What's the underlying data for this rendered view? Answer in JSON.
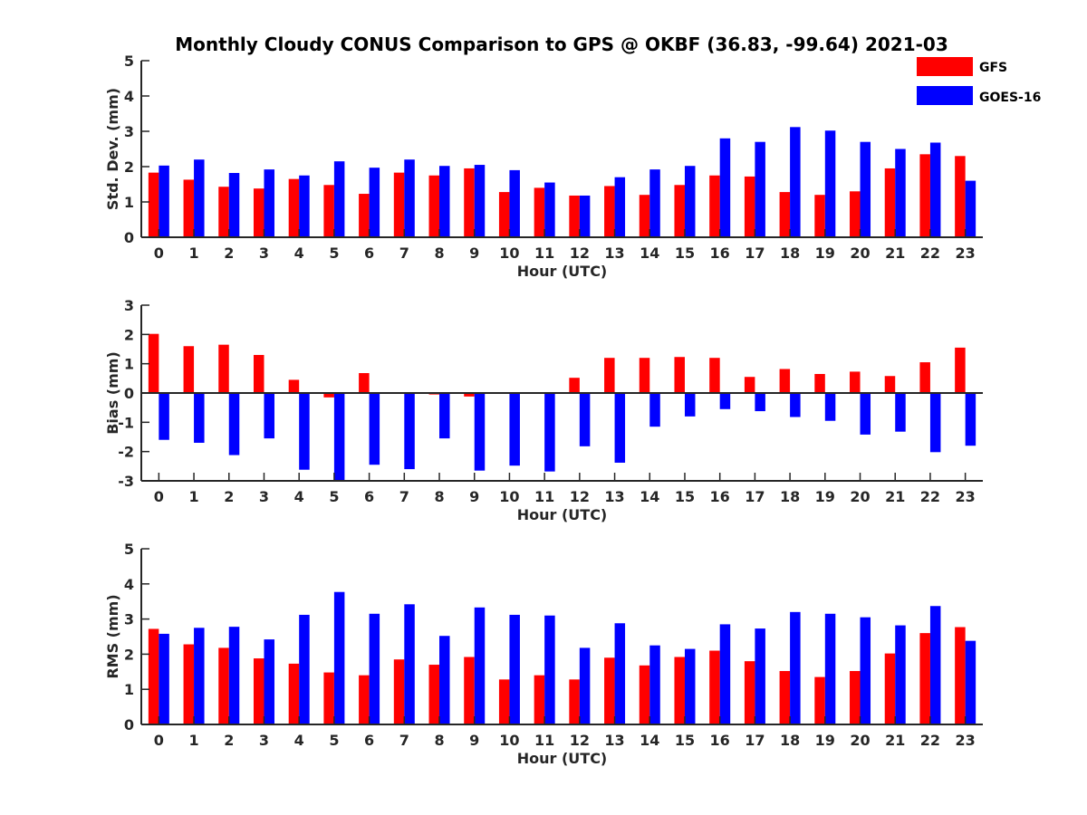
{
  "chart_data": {
    "title": "Monthly Cloudy CONUS Comparison to GPS @ OKBF (36.83, -99.64) 2021-03",
    "legend": {
      "placement": "top-right",
      "entries": [
        {
          "name": "GFS",
          "color": "#ff0000"
        },
        {
          "name": "GOES-16",
          "color": "#0000ff"
        }
      ]
    },
    "panels": [
      {
        "type": "bar",
        "ylabel": "Std. Dev. (mm)",
        "xlabel": "Hour (UTC)",
        "ylim": [
          0,
          5
        ],
        "yticks": [
          0,
          1,
          2,
          3,
          4,
          5
        ],
        "categories": [
          "0",
          "1",
          "2",
          "3",
          "4",
          "5",
          "6",
          "7",
          "8",
          "9",
          "10",
          "11",
          "12",
          "13",
          "14",
          "15",
          "16",
          "17",
          "18",
          "19",
          "20",
          "21",
          "22",
          "23"
        ],
        "series": [
          {
            "name": "GFS",
            "color": "#ff0000",
            "values": [
              1.83,
              1.63,
              1.43,
              1.38,
              1.65,
              1.48,
              1.23,
              1.83,
              1.75,
              1.95,
              1.28,
              1.4,
              1.18,
              1.45,
              1.2,
              1.48,
              1.75,
              1.72,
              1.28,
              1.2,
              1.3,
              1.95,
              2.35,
              2.3
            ]
          },
          {
            "name": "GOES-16",
            "color": "#0000ff",
            "values": [
              2.03,
              2.2,
              1.82,
              1.92,
              1.75,
              2.15,
              1.97,
              2.2,
              2.02,
              2.05,
              1.9,
              1.55,
              1.18,
              1.7,
              1.92,
              2.02,
              2.8,
              2.7,
              3.12,
              3.02,
              2.7,
              2.5,
              2.68,
              1.6
            ]
          }
        ]
      },
      {
        "type": "bar",
        "ylabel": "Bias (mm)",
        "xlabel": "Hour (UTC)",
        "ylim": [
          -3,
          3
        ],
        "yticks": [
          -3,
          -2,
          -1,
          0,
          1,
          2,
          3
        ],
        "categories": [
          "0",
          "1",
          "2",
          "3",
          "4",
          "5",
          "6",
          "7",
          "8",
          "9",
          "10",
          "11",
          "12",
          "13",
          "14",
          "15",
          "16",
          "17",
          "18",
          "19",
          "20",
          "21",
          "22",
          "23"
        ],
        "series": [
          {
            "name": "GFS",
            "color": "#ff0000",
            "values": [
              2.02,
              1.6,
              1.65,
              1.3,
              0.45,
              -0.15,
              0.68,
              0,
              -0.05,
              -0.12,
              0,
              -0.03,
              0.52,
              1.2,
              1.2,
              1.23,
              1.2,
              0.55,
              0.82,
              0.65,
              0.73,
              0.58,
              1.05,
              1.55
            ]
          },
          {
            "name": "GOES-16",
            "color": "#0000ff",
            "values": [
              -1.6,
              -1.7,
              -2.12,
              -1.55,
              -2.62,
              -3.0,
              -2.45,
              -2.6,
              -1.55,
              -2.65,
              -2.48,
              -2.68,
              -1.82,
              -2.38,
              -1.15,
              -0.8,
              -0.55,
              -0.62,
              -0.82,
              -0.95,
              -1.42,
              -1.32,
              -2.02,
              -1.8
            ]
          }
        ]
      },
      {
        "type": "bar",
        "ylabel": "RMS (mm)",
        "xlabel": "Hour (UTC)",
        "ylim": [
          0,
          5
        ],
        "yticks": [
          0,
          1,
          2,
          3,
          4,
          5
        ],
        "categories": [
          "0",
          "1",
          "2",
          "3",
          "4",
          "5",
          "6",
          "7",
          "8",
          "9",
          "10",
          "11",
          "12",
          "13",
          "14",
          "15",
          "16",
          "17",
          "18",
          "19",
          "20",
          "21",
          "22",
          "23"
        ],
        "series": [
          {
            "name": "GFS",
            "color": "#ff0000",
            "values": [
              2.72,
              2.28,
              2.18,
              1.88,
              1.73,
              1.48,
              1.4,
              1.85,
              1.7,
              1.92,
              1.28,
              1.4,
              1.28,
              1.9,
              1.68,
              1.92,
              2.1,
              1.8,
              1.52,
              1.35,
              1.52,
              2.02,
              2.6,
              2.77
            ]
          },
          {
            "name": "GOES-16",
            "color": "#0000ff",
            "values": [
              2.58,
              2.75,
              2.78,
              2.42,
              3.12,
              3.77,
              3.15,
              3.42,
              2.52,
              3.33,
              3.12,
              3.1,
              2.18,
              2.88,
              2.25,
              2.15,
              2.85,
              2.73,
              3.2,
              3.15,
              3.05,
              2.82,
              3.37,
              2.38
            ]
          }
        ]
      }
    ]
  }
}
